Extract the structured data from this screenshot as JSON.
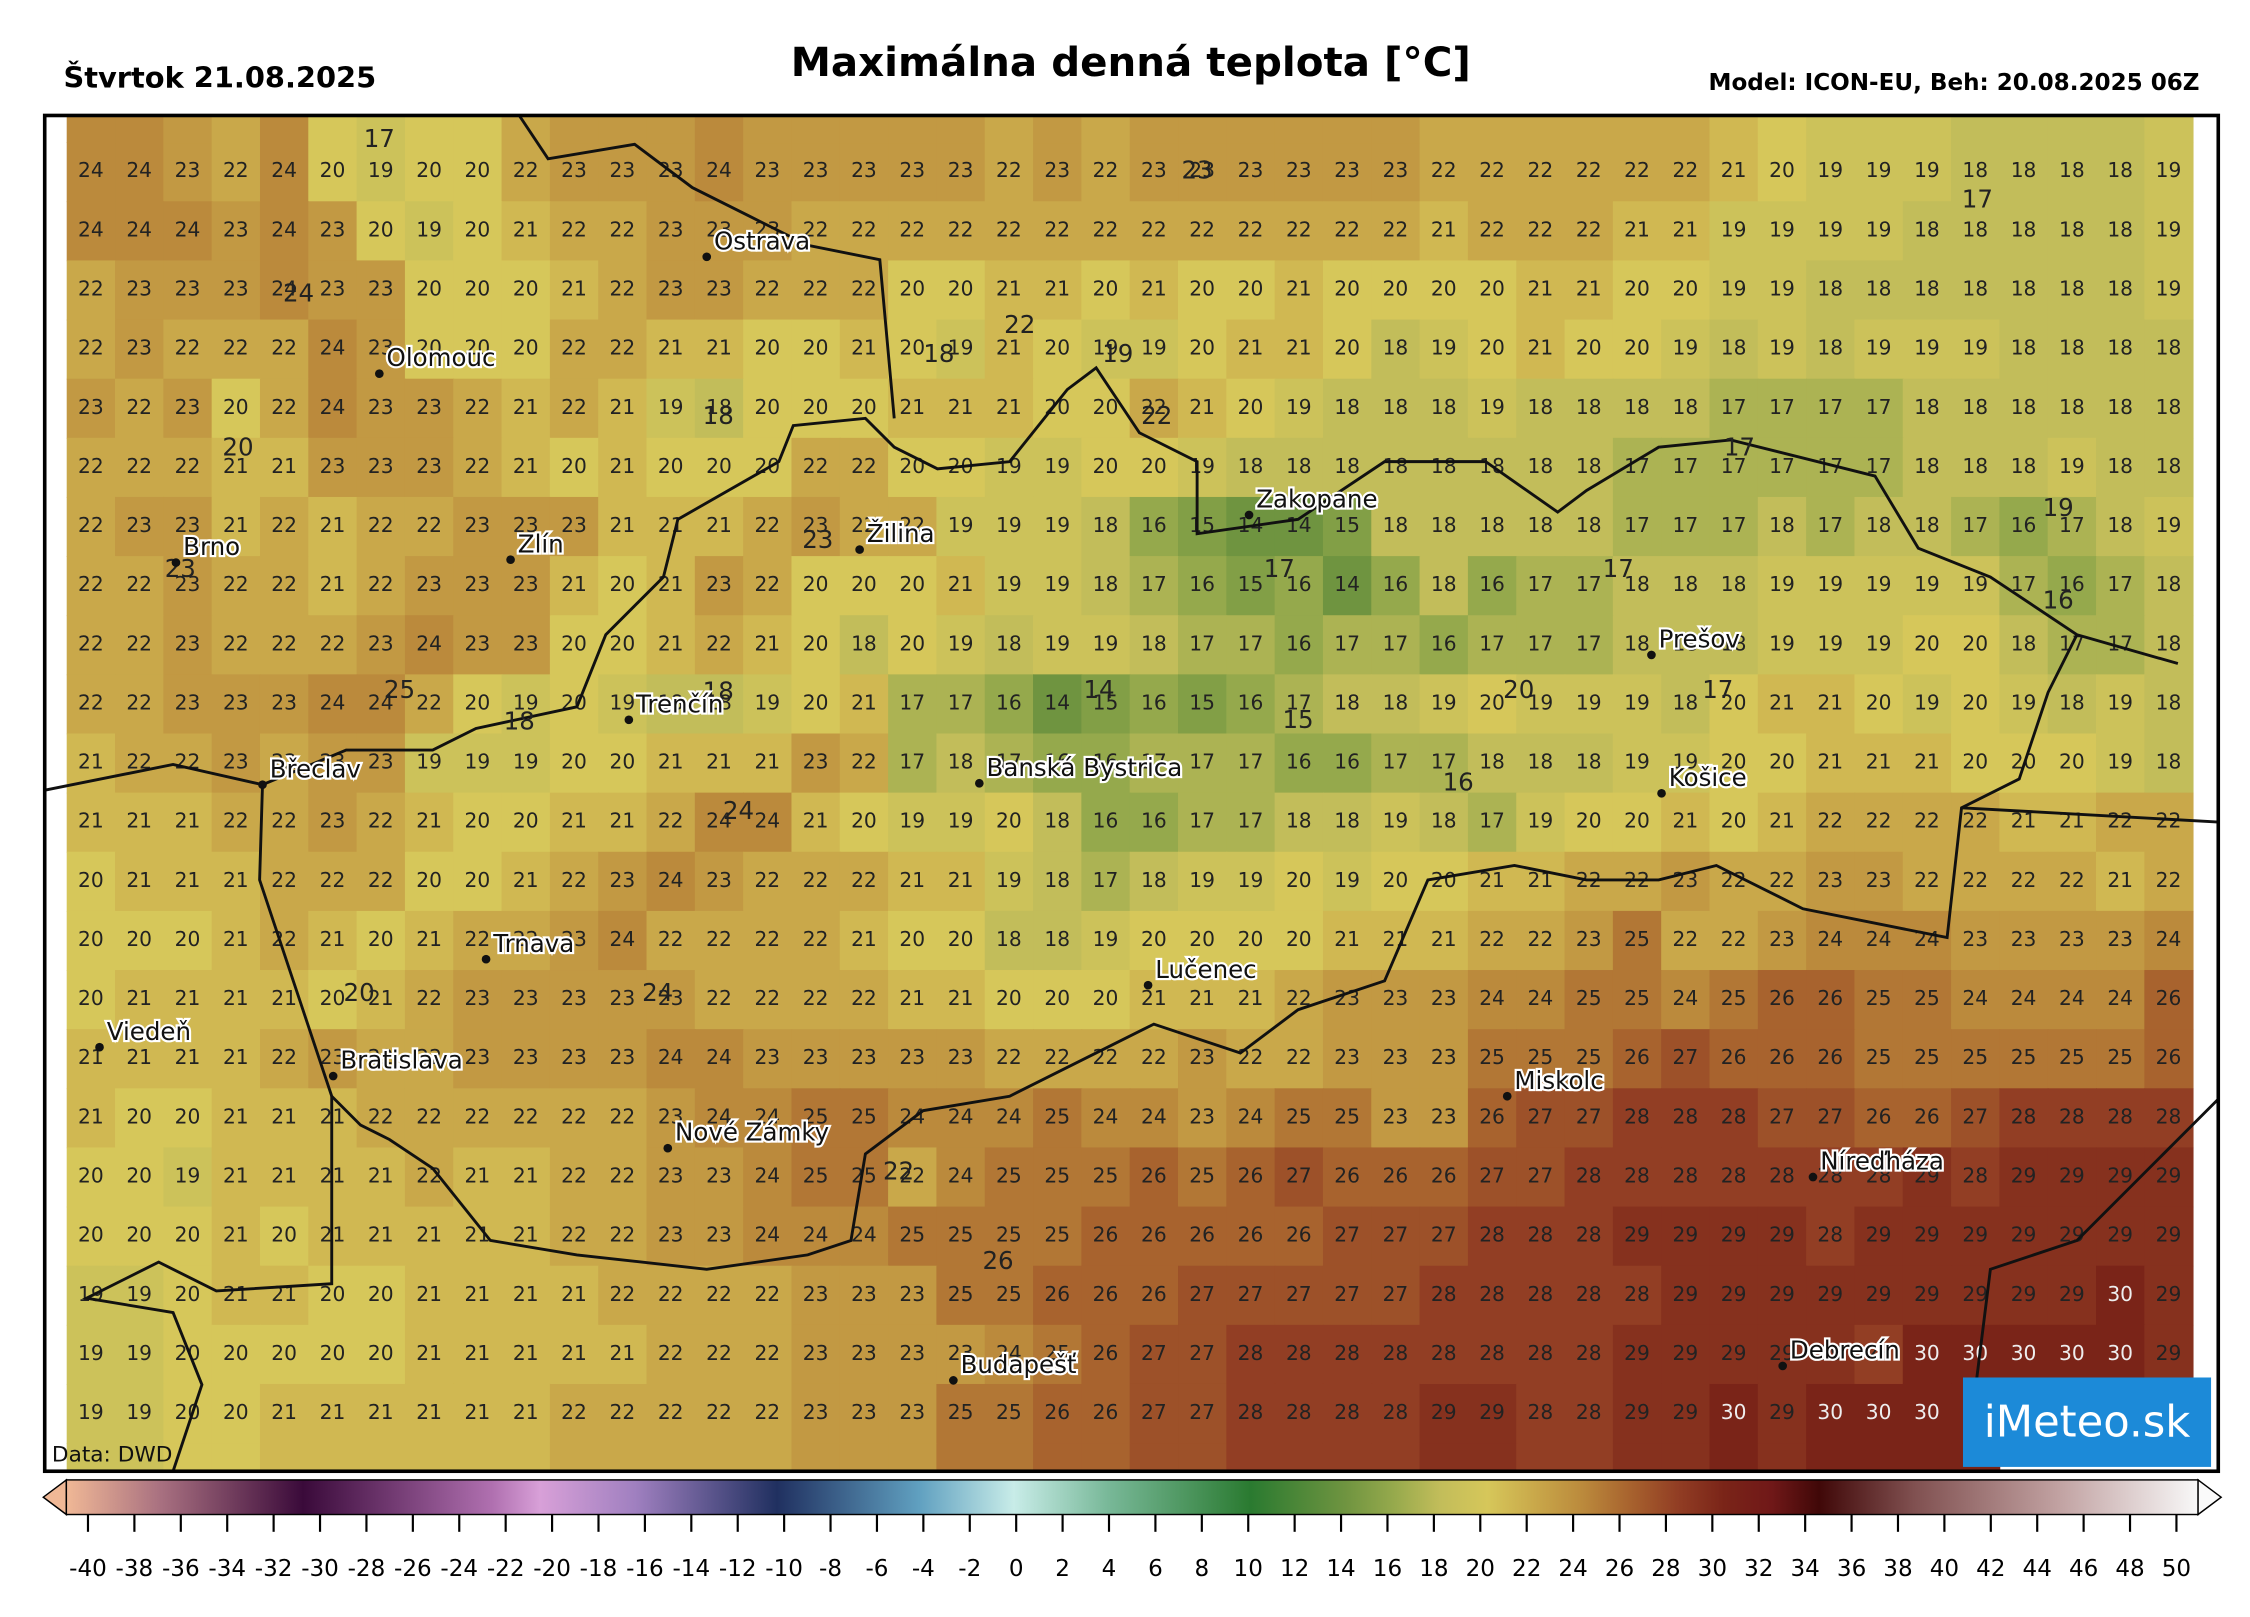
{
  "header": {
    "date": "Štvrtok 21.08.2025",
    "title": "Maximálna denná teplota [°C]",
    "model": "Model: ICON-EU, Beh: 20.08.2025 06Z"
  },
  "map": {
    "grid": [
      [
        24,
        24,
        23,
        22,
        24,
        20,
        19,
        20,
        20,
        22,
        23,
        23,
        23,
        24,
        23,
        23,
        23,
        23,
        23,
        22,
        23,
        22,
        23,
        23,
        23,
        23,
        23,
        23,
        22,
        22,
        22,
        22,
        22,
        22,
        21,
        20,
        19,
        19,
        19,
        18,
        18,
        18,
        18,
        19
      ],
      [
        24,
        24,
        24,
        23,
        24,
        23,
        20,
        19,
        20,
        21,
        22,
        22,
        23,
        23,
        23,
        22,
        22,
        22,
        22,
        22,
        22,
        22,
        22,
        22,
        22,
        22,
        22,
        22,
        21,
        22,
        22,
        22,
        21,
        21,
        19,
        19,
        19,
        19,
        18,
        18,
        18,
        18,
        18,
        19
      ],
      [
        22,
        23,
        23,
        23,
        24,
        23,
        23,
        20,
        20,
        20,
        21,
        22,
        23,
        23,
        22,
        22,
        22,
        20,
        20,
        21,
        21,
        20,
        21,
        20,
        20,
        21,
        20,
        20,
        20,
        20,
        21,
        21,
        20,
        20,
        19,
        19,
        18,
        18,
        18,
        18,
        18,
        18,
        18,
        19
      ],
      [
        22,
        23,
        22,
        22,
        22,
        24,
        23,
        20,
        20,
        20,
        22,
        22,
        21,
        21,
        20,
        20,
        21,
        20,
        19,
        21,
        20,
        19,
        19,
        20,
        21,
        21,
        20,
        18,
        19,
        20,
        21,
        20,
        20,
        19,
        18,
        19,
        18,
        19,
        19,
        19,
        18,
        18,
        18,
        18
      ],
      [
        23,
        22,
        23,
        20,
        22,
        24,
        23,
        23,
        22,
        21,
        22,
        21,
        19,
        18,
        20,
        20,
        20,
        21,
        21,
        21,
        20,
        20,
        22,
        21,
        20,
        19,
        18,
        18,
        18,
        19,
        18,
        18,
        18,
        18,
        17,
        17,
        17,
        17,
        18,
        18,
        18,
        18,
        18,
        18
      ],
      [
        22,
        22,
        22,
        21,
        21,
        23,
        23,
        23,
        22,
        21,
        20,
        21,
        20,
        20,
        20,
        22,
        22,
        20,
        20,
        19,
        19,
        20,
        20,
        19,
        18,
        18,
        18,
        18,
        18,
        18,
        18,
        18,
        17,
        17,
        17,
        17,
        17,
        17,
        18,
        18,
        18,
        19,
        18,
        18
      ],
      [
        22,
        23,
        23,
        21,
        22,
        21,
        22,
        22,
        23,
        23,
        23,
        21,
        21,
        21,
        22,
        23,
        22,
        22,
        19,
        19,
        19,
        18,
        16,
        15,
        14,
        14,
        15,
        18,
        18,
        18,
        18,
        18,
        17,
        17,
        17,
        18,
        17,
        18,
        18,
        17,
        16,
        17,
        18,
        19
      ],
      [
        22,
        22,
        23,
        22,
        22,
        21,
        22,
        23,
        23,
        23,
        21,
        20,
        21,
        23,
        22,
        20,
        20,
        20,
        21,
        19,
        19,
        18,
        17,
        16,
        15,
        16,
        14,
        16,
        18,
        16,
        17,
        17,
        18,
        18,
        18,
        19,
        19,
        19,
        19,
        19,
        17,
        16,
        17,
        18
      ],
      [
        22,
        22,
        23,
        22,
        22,
        22,
        23,
        24,
        23,
        23,
        20,
        20,
        21,
        22,
        21,
        20,
        18,
        20,
        19,
        18,
        19,
        19,
        18,
        17,
        17,
        16,
        17,
        17,
        16,
        17,
        17,
        17,
        18,
        18,
        18,
        19,
        19,
        19,
        20,
        20,
        18,
        17,
        17,
        18
      ],
      [
        22,
        22,
        23,
        23,
        23,
        24,
        24,
        22,
        20,
        19,
        20,
        19,
        18,
        18,
        19,
        20,
        21,
        17,
        17,
        16,
        14,
        15,
        16,
        15,
        16,
        17,
        18,
        18,
        19,
        20,
        19,
        19,
        19,
        18,
        20,
        21,
        21,
        20,
        19,
        20,
        19,
        18,
        19,
        18
      ],
      [
        21,
        22,
        22,
        23,
        22,
        23,
        23,
        19,
        19,
        19,
        20,
        20,
        21,
        21,
        21,
        23,
        22,
        17,
        18,
        17,
        16,
        16,
        17,
        17,
        17,
        16,
        16,
        17,
        17,
        18,
        18,
        18,
        19,
        19,
        20,
        20,
        21,
        21,
        21,
        20,
        20,
        20,
        19,
        18
      ],
      [
        21,
        21,
        21,
        22,
        22,
        23,
        22,
        21,
        20,
        20,
        21,
        21,
        22,
        24,
        24,
        21,
        20,
        19,
        19,
        20,
        18,
        16,
        16,
        17,
        17,
        18,
        18,
        19,
        18,
        17,
        19,
        20,
        20,
        21,
        20,
        21,
        22,
        22,
        22,
        22,
        21,
        21,
        22,
        22
      ],
      [
        20,
        21,
        21,
        21,
        22,
        22,
        22,
        20,
        20,
        21,
        22,
        23,
        24,
        23,
        22,
        22,
        22,
        21,
        21,
        19,
        18,
        17,
        18,
        19,
        19,
        20,
        19,
        20,
        20,
        21,
        21,
        22,
        22,
        23,
        22,
        22,
        23,
        23,
        22,
        22,
        22,
        22,
        21,
        22
      ],
      [
        20,
        20,
        20,
        21,
        22,
        21,
        20,
        21,
        22,
        22,
        23,
        24,
        22,
        22,
        22,
        22,
        21,
        20,
        20,
        18,
        18,
        19,
        20,
        20,
        20,
        20,
        21,
        21,
        21,
        22,
        22,
        23,
        25,
        22,
        22,
        23,
        24,
        24,
        24,
        23,
        23,
        23,
        23,
        24
      ],
      [
        20,
        21,
        21,
        21,
        21,
        20,
        21,
        22,
        23,
        23,
        23,
        23,
        23,
        22,
        22,
        22,
        22,
        21,
        21,
        20,
        20,
        20,
        21,
        21,
        21,
        22,
        23,
        23,
        23,
        24,
        24,
        25,
        25,
        24,
        25,
        26,
        26,
        25,
        25,
        24,
        24,
        24,
        24,
        26
      ],
      [
        21,
        21,
        21,
        21,
        22,
        23,
        22,
        22,
        23,
        23,
        23,
        23,
        24,
        24,
        23,
        23,
        23,
        23,
        23,
        22,
        22,
        22,
        22,
        23,
        22,
        22,
        23,
        23,
        23,
        25,
        25,
        25,
        26,
        27,
        26,
        26,
        26,
        25,
        25,
        25,
        25,
        25,
        25,
        26
      ],
      [
        21,
        20,
        20,
        21,
        21,
        21,
        22,
        22,
        22,
        22,
        22,
        22,
        23,
        24,
        24,
        25,
        25,
        24,
        24,
        24,
        25,
        24,
        24,
        23,
        24,
        25,
        25,
        23,
        23,
        26,
        27,
        27,
        28,
        28,
        28,
        27,
        27,
        26,
        26,
        27,
        28,
        28,
        28,
        28
      ],
      [
        20,
        20,
        19,
        21,
        21,
        21,
        21,
        22,
        21,
        21,
        22,
        22,
        23,
        23,
        24,
        25,
        25,
        22,
        24,
        25,
        25,
        25,
        26,
        25,
        26,
        27,
        26,
        26,
        26,
        27,
        27,
        28,
        28,
        28,
        28,
        28,
        28,
        28,
        29,
        28,
        29,
        29,
        29,
        29
      ],
      [
        20,
        20,
        20,
        21,
        20,
        21,
        21,
        21,
        21,
        21,
        22,
        22,
        23,
        23,
        24,
        24,
        24,
        25,
        25,
        25,
        25,
        26,
        26,
        26,
        26,
        26,
        27,
        27,
        27,
        28,
        28,
        28,
        29,
        29,
        29,
        29,
        28,
        29,
        29,
        29,
        29,
        29,
        29,
        29
      ],
      [
        19,
        19,
        20,
        21,
        21,
        20,
        20,
        21,
        21,
        21,
        21,
        22,
        22,
        22,
        22,
        23,
        23,
        23,
        25,
        25,
        26,
        26,
        26,
        27,
        27,
        27,
        27,
        27,
        28,
        28,
        28,
        28,
        28,
        29,
        29,
        29,
        29,
        29,
        29,
        29,
        29,
        29,
        30,
        29
      ],
      [
        19,
        19,
        20,
        20,
        20,
        20,
        20,
        21,
        21,
        21,
        21,
        21,
        22,
        22,
        22,
        23,
        23,
        23,
        23,
        24,
        25,
        26,
        27,
        27,
        28,
        28,
        28,
        28,
        28,
        28,
        28,
        28,
        29,
        29,
        29,
        29,
        29,
        28,
        30,
        30,
        30,
        30,
        30,
        29
      ],
      [
        19,
        19,
        20,
        20,
        21,
        21,
        21,
        21,
        21,
        21,
        22,
        22,
        22,
        22,
        22,
        23,
        23,
        23,
        25,
        25,
        26,
        26,
        27,
        27,
        28,
        28,
        28,
        28,
        29,
        29,
        28,
        28,
        29,
        29,
        30,
        29,
        30,
        30,
        30,
        30
      ]
    ],
    "spot_values": [
      17,
      23,
      17,
      24,
      22,
      18,
      19,
      18,
      22,
      20,
      17,
      19,
      23,
      23,
      17,
      17,
      16,
      25,
      18,
      18,
      14,
      15,
      20,
      17,
      24,
      16,
      20,
      24,
      22,
      26
    ],
    "cities": [
      "Ostrava",
      "Olomouc",
      "Brno",
      "Zlín",
      "Žilina",
      "Zakopane",
      "Prešov",
      "Trenčín",
      "Břeclav",
      "Banská Bystrica",
      "Košice",
      "Trnava",
      "Lučenec",
      "Viedeň",
      "Bratislava",
      "Miskolc",
      "Nové Zámky",
      "Níreďháza",
      "Budapešť",
      "Debrecín"
    ]
  },
  "source": "Data: DWD",
  "logo": "iMeteo.sk",
  "colorbar": {
    "ticks": [
      -40,
      -38,
      -36,
      -34,
      -32,
      -30,
      -28,
      -26,
      -24,
      -22,
      -20,
      -18,
      -16,
      -14,
      -12,
      -10,
      -8,
      -6,
      -4,
      -2,
      0,
      2,
      4,
      6,
      8,
      10,
      12,
      14,
      16,
      18,
      20,
      22,
      24,
      26,
      28,
      30,
      32,
      34,
      36,
      38,
      40,
      42,
      44,
      46,
      48,
      50
    ]
  }
}
